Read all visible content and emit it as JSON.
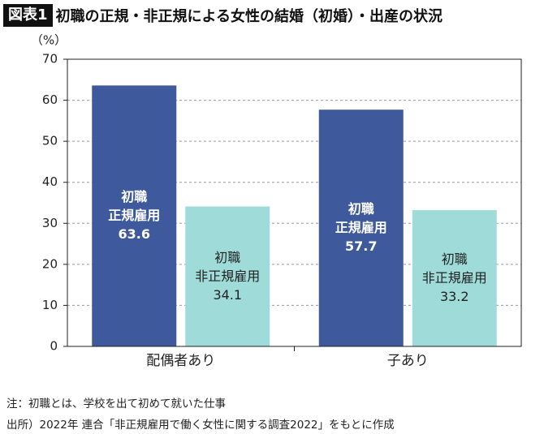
{
  "badge": "図表1",
  "chart_data": {
    "type": "bar",
    "title": "初職の正規・非正規による女性の結婚（初婚）・出産の状況",
    "y_unit": "（%）",
    "categories": [
      "配偶者あり",
      "子あり"
    ],
    "series": [
      {
        "name": "初職\n正規雇用",
        "color": "#3f5a9c",
        "label_color": "#ffffff",
        "values": [
          63.6,
          57.7
        ]
      },
      {
        "name": "初職\n非正規雇用",
        "color": "#9fdbd9",
        "label_color": "#222222",
        "values": [
          34.1,
          33.2
        ]
      }
    ],
    "ylim": [
      0,
      70
    ],
    "yticks": [
      0,
      10,
      20,
      30,
      40,
      50,
      60,
      70
    ],
    "grid": true
  },
  "notes": [
    "注：初職とは、学校を出て初めて就いた仕事",
    "出所）2022年 連合「非正規雇用で働く女性に関する調査2022」をもとに作成"
  ]
}
